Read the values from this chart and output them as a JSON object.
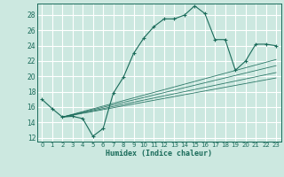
{
  "title": "",
  "xlabel": "Humidex (Indice chaleur)",
  "bg_color": "#cce8e0",
  "grid_color": "#ffffff",
  "line_color": "#1a6b5a",
  "xlim": [
    -0.5,
    23.5
  ],
  "ylim": [
    11.5,
    29.5
  ],
  "xtick_labels": [
    "0",
    "1",
    "2",
    "3",
    "4",
    "5",
    "6",
    "7",
    "8",
    "9",
    "10",
    "11",
    "12",
    "13",
    "14",
    "15",
    "16",
    "17",
    "18",
    "19",
    "20",
    "21",
    "22",
    "23"
  ],
  "ytick_values": [
    12,
    14,
    16,
    18,
    20,
    22,
    24,
    26,
    28
  ],
  "main_line": {
    "x": [
      0,
      1,
      2,
      3,
      4,
      5,
      6,
      7,
      8,
      9,
      10,
      11,
      12,
      13,
      14,
      15,
      16,
      17,
      18,
      19,
      20,
      21,
      22,
      23
    ],
    "y": [
      17.0,
      15.8,
      14.7,
      14.8,
      14.5,
      12.2,
      13.2,
      17.8,
      19.9,
      23.0,
      25.0,
      26.5,
      27.5,
      27.5,
      28.0,
      29.2,
      28.2,
      24.8,
      24.8,
      20.8,
      22.0,
      24.2,
      24.2,
      24.0
    ]
  },
  "trend_lines": [
    {
      "x": [
        2,
        23
      ],
      "y": [
        14.7,
        22.2
      ]
    },
    {
      "x": [
        2,
        23
      ],
      "y": [
        14.7,
        21.4
      ]
    },
    {
      "x": [
        2,
        23
      ],
      "y": [
        14.7,
        20.5
      ]
    },
    {
      "x": [
        2,
        23
      ],
      "y": [
        14.7,
        19.8
      ]
    }
  ]
}
